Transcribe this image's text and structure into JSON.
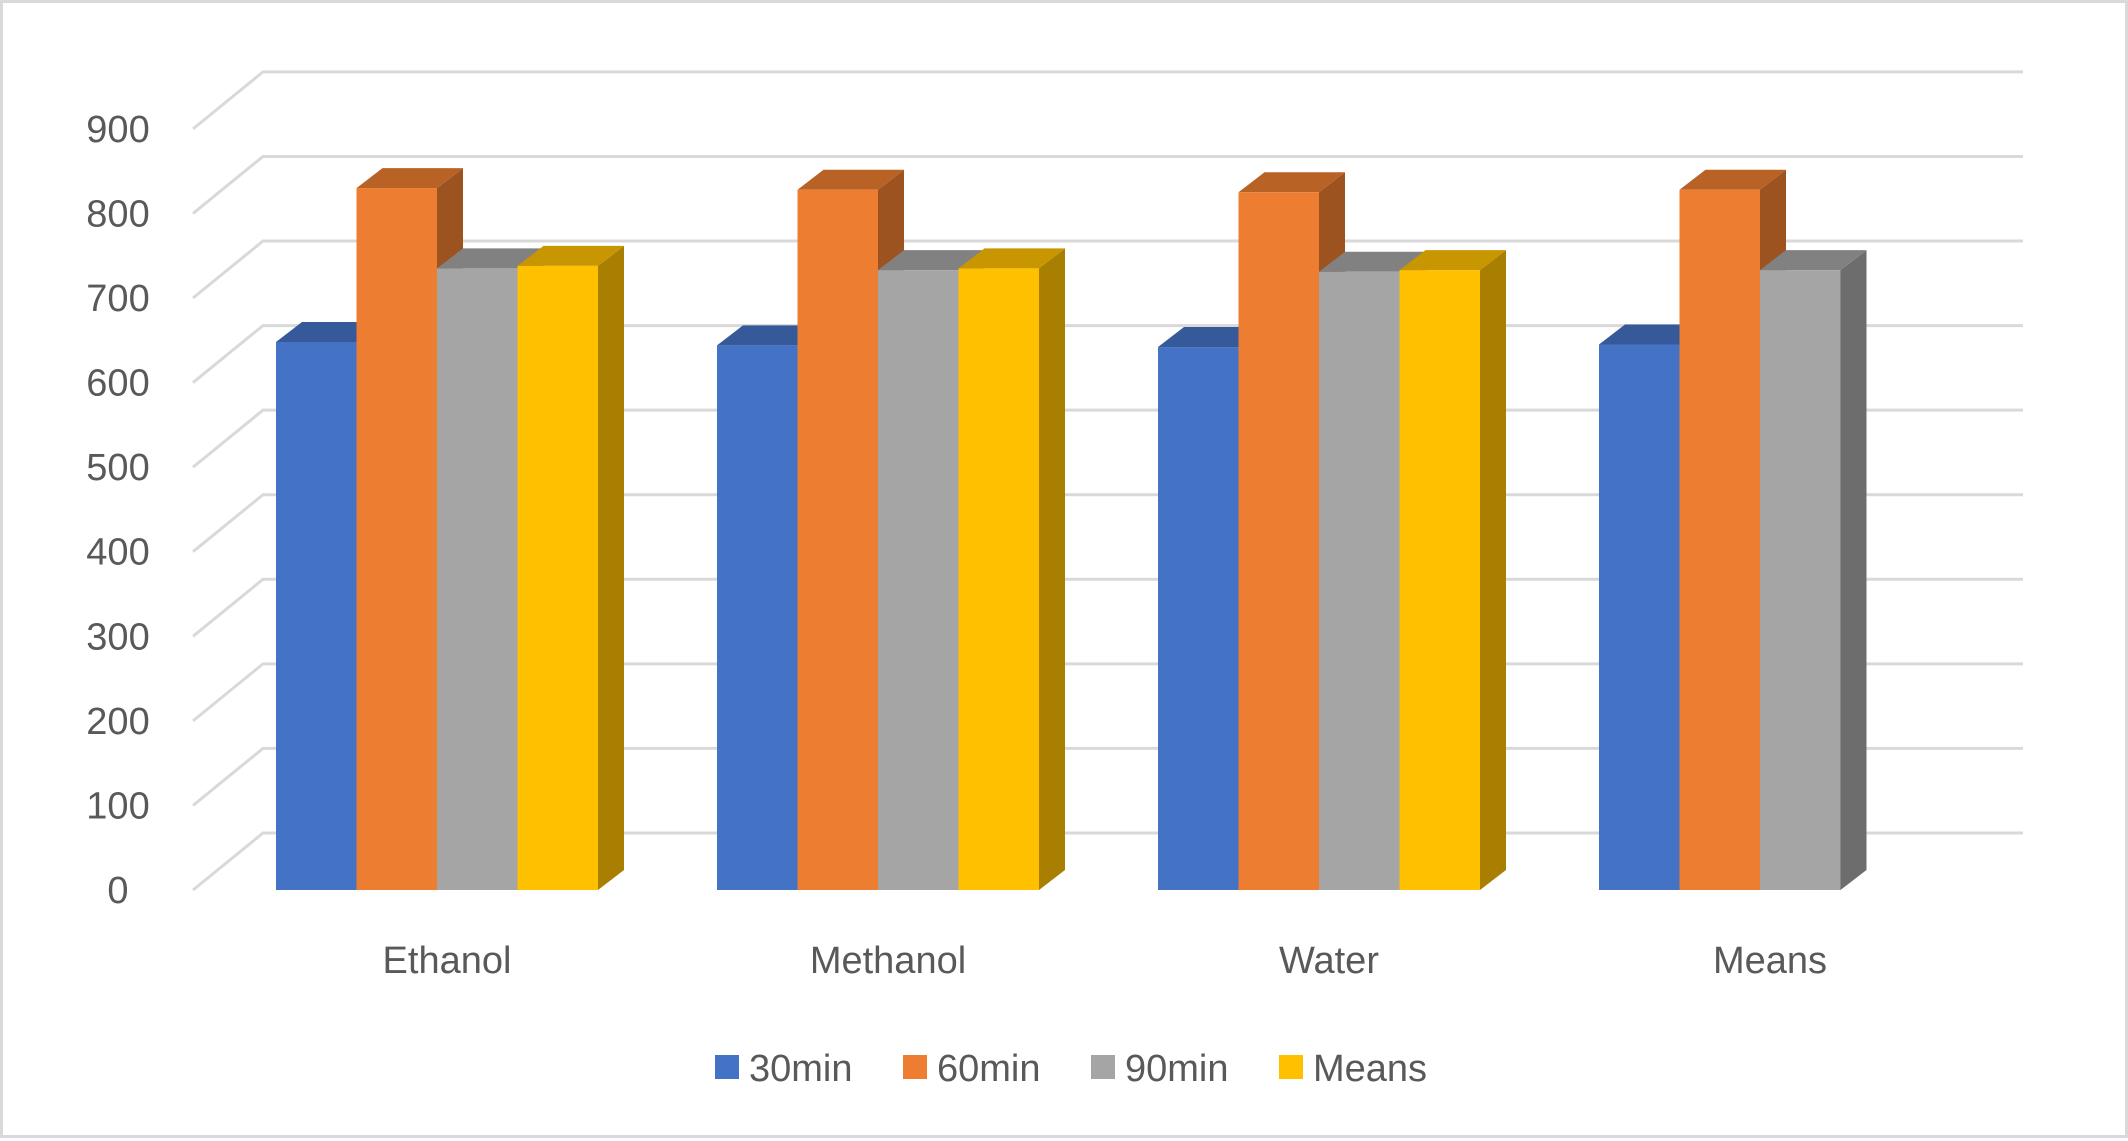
{
  "chart_data": {
    "type": "bar",
    "style": "3d-clustered-column",
    "title": "",
    "xlabel": "",
    "ylabel": "",
    "categories": [
      "Ethanol",
      "Methanol",
      "Water",
      "Means"
    ],
    "ylim": [
      0,
      900
    ],
    "yticks": [
      "0",
      "100",
      "200",
      "300",
      "400",
      "500",
      "600",
      "700",
      "800",
      "900"
    ],
    "grid": true,
    "legend_position": "bottom",
    "series": [
      {
        "name": "30min",
        "color": "#4472C4",
        "values": [
          648,
          644,
          642,
          645
        ]
      },
      {
        "name": "60min",
        "color": "#ED7D31",
        "values": [
          830,
          828,
          825,
          828
        ]
      },
      {
        "name": "90min",
        "color": "#A5A5A5",
        "values": [
          735,
          733,
          731,
          733
        ]
      },
      {
        "name": "Means",
        "color": "#FFC000",
        "values": [
          738,
          735,
          733,
          null
        ]
      }
    ]
  }
}
